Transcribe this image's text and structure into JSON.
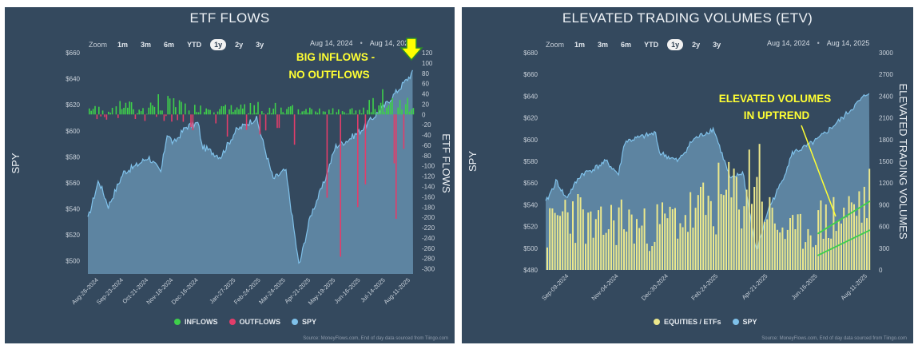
{
  "charts": [
    {
      "title": "ETF FLOWS",
      "zoom_label": "Zoom",
      "zoom_buttons": [
        "1m",
        "3m",
        "6m",
        "YTD",
        "1y",
        "2y",
        "3y"
      ],
      "zoom_active": "1y",
      "range_from": "Aug 14, 2024",
      "range_to": "Aug 14, 2025",
      "annotation_line1": "BIG INFLOWS -",
      "annotation_line2": "NO OUTFLOWS",
      "legend": [
        "INFLOWS",
        "OUTFLOWS",
        "SPY"
      ],
      "credit": "Source: MoneyFlows.com, End of day data sourced from Tiingo.com"
    },
    {
      "title": "ELEVATED TRADING VOLUMES (ETV)",
      "zoom_label": "Zoom",
      "zoom_buttons": [
        "1m",
        "3m",
        "6m",
        "YTD",
        "1y",
        "2y",
        "3y"
      ],
      "zoom_active": "1y",
      "range_from": "Aug 14, 2024",
      "range_to": "Aug 14, 2025",
      "annotation_line1": "ELEVATED VOLUMES",
      "annotation_line2": "IN UPTREND",
      "legend": [
        "EQUITIES / ETFs",
        "SPY"
      ],
      "credit": "Source: MoneyFlows.com, End of day data sourced from Tiingo.com"
    }
  ],
  "colors": {
    "panel": "#34495e",
    "spy_line": "#7fc1ea",
    "inflow": "#3ecf4a",
    "outflow": "#e23d6a",
    "volume": "#ece88c",
    "annotation": "#ffff33",
    "trend": "#3ecf4a"
  },
  "chart_data": [
    {
      "type": "bar",
      "title": "ETF FLOWS",
      "xlabel": "",
      "ylabel": "SPY",
      "y2label": "ETF FLOWS",
      "ylim": [
        490,
        660
      ],
      "y_ticks": [
        "$660",
        "$640",
        "$620",
        "$600",
        "$580",
        "$560",
        "$540",
        "$520",
        "$500"
      ],
      "y2lim": [
        -310,
        120
      ],
      "y2_ticks": [
        "120",
        "100",
        "80",
        "60",
        "40",
        "20",
        "0",
        "-20",
        "-40",
        "-60",
        "-80",
        "-100",
        "-120",
        "-140",
        "-160",
        "-180",
        "-200",
        "-220",
        "-240",
        "-260",
        "-280",
        "-300"
      ],
      "x_ticks": [
        "Aug-26-2024",
        "Sep-23-2024",
        "Oct-21-2024",
        "Nov-18-2024",
        "Dec-16-2024",
        "Jan-27-2025",
        "Feb-24-2025",
        "Mar-24-2025",
        "Apr-21-2025",
        "May-19-2025",
        "Jun-16-2025",
        "Jul-14-2025",
        "Aug-11-2025"
      ],
      "legend_position": "bottom",
      "series": [
        {
          "name": "SPY",
          "kind": "area",
          "x": [
            "Aug-14-2024",
            "Aug-26-2024",
            "Sep-06-2024",
            "Sep-23-2024",
            "Oct-07-2024",
            "Oct-21-2024",
            "Nov-04-2024",
            "Nov-11-2024",
            "Nov-18-2024",
            "Dec-02-2024",
            "Dec-16-2024",
            "Dec-20-2024",
            "Jan-10-2025",
            "Jan-27-2025",
            "Feb-19-2025",
            "Mar-10-2025",
            "Mar-24-2025",
            "Apr-08-2025",
            "Apr-21-2025",
            "May-06-2025",
            "May-19-2025",
            "Jun-02-2025",
            "Jun-16-2025",
            "Jul-14-2025",
            "Aug-14-2025"
          ],
          "values": [
            532,
            562,
            542,
            568,
            573,
            580,
            568,
            598,
            590,
            603,
            606,
            588,
            580,
            600,
            610,
            563,
            570,
            496,
            535,
            560,
            588,
            593,
            600,
            620,
            645
          ]
        },
        {
          "name": "INFLOWS",
          "kind": "bar",
          "x": [
            "Aug-26-2024",
            "Sep-23-2024",
            "Oct-21-2024",
            "Nov-11-2024",
            "Nov-18-2024",
            "Dec-16-2024",
            "Jan-27-2025",
            "Feb-24-2025",
            "May-19-2025",
            "Jun-16-2025",
            "Jul-14-2025",
            "Aug-11-2025",
            "Aug-14-2025"
          ],
          "values": [
            18,
            28,
            22,
            75,
            30,
            20,
            20,
            25,
            12,
            18,
            55,
            42,
            90
          ]
        },
        {
          "name": "OUTFLOWS",
          "kind": "bar",
          "x": [
            "Nov-18-2024",
            "Dec-16-2024",
            "Dec-20-2024",
            "Jan-10-2025",
            "Feb-24-2025",
            "Mar-10-2025",
            "Mar-24-2025",
            "Apr-08-2025",
            "Apr-21-2025"
          ],
          "values": [
            -18,
            -40,
            -110,
            -65,
            -45,
            -100,
            -75,
            -150,
            -285
          ]
        }
      ]
    },
    {
      "type": "bar",
      "title": "ELEVATED TRADING VOLUMES (ETV)",
      "xlabel": "",
      "ylabel": "SPY",
      "y2label": "ELEVATED TRADING VOLUMES",
      "ylim": [
        480,
        680
      ],
      "y_ticks": [
        "$680",
        "$660",
        "$640",
        "$620",
        "$600",
        "$580",
        "$560",
        "$540",
        "$520",
        "$500",
        "$480"
      ],
      "y2lim": [
        0,
        3000
      ],
      "y2_ticks": [
        "3000",
        "2700",
        "2400",
        "2100",
        "1800",
        "1500",
        "1200",
        "900",
        "600",
        "300",
        "0"
      ],
      "x_ticks": [
        "Sep-09-2024",
        "Nov-04-2024",
        "Dec-30-2024",
        "Feb-24-2025",
        "Apr-21-2025",
        "Jun-16-2025",
        "Aug-11-2025"
      ],
      "legend_position": "bottom",
      "series": [
        {
          "name": "SPY",
          "kind": "area",
          "x": [
            "Aug-14-2024",
            "Aug-26-2024",
            "Sep-06-2024",
            "Sep-23-2024",
            "Oct-07-2024",
            "Oct-21-2024",
            "Nov-04-2024",
            "Nov-11-2024",
            "Dec-02-2024",
            "Dec-16-2024",
            "Dec-20-2024",
            "Jan-10-2025",
            "Jan-27-2025",
            "Feb-19-2025",
            "Mar-10-2025",
            "Mar-24-2025",
            "Apr-08-2025",
            "Apr-21-2025",
            "May-06-2025",
            "May-19-2025",
            "Jun-02-2025",
            "Jun-16-2025",
            "Jul-14-2025",
            "Aug-14-2025"
          ],
          "values": [
            542,
            562,
            546,
            568,
            573,
            580,
            568,
            598,
            603,
            606,
            588,
            580,
            600,
            610,
            563,
            570,
            496,
            535,
            560,
            588,
            593,
            600,
            620,
            645
          ]
        },
        {
          "name": "EQUITIES / ETFs",
          "kind": "bar",
          "x": [
            "Aug-14-2024",
            "Sep-09-2024",
            "Oct-07-2024",
            "Nov-04-2024",
            "Dec-02-2024",
            "Dec-30-2024",
            "Jan-27-2025",
            "Feb-24-2025",
            "Mar-24-2025",
            "Apr-08-2025",
            "Apr-21-2025",
            "May-19-2025",
            "Jun-16-2025",
            "Jul-14-2025",
            "Aug-11-2025"
          ],
          "values": [
            650,
            1100,
            650,
            900,
            700,
            850,
            950,
            1200,
            1300,
            1900,
            900,
            600,
            800,
            950,
            1200
          ]
        }
      ],
      "trendlines": [
        {
          "x": [
            "Jun-16-2025",
            "Aug-14-2025"
          ],
          "values": [
            500,
            950
          ]
        },
        {
          "x": [
            "Jun-16-2025",
            "Aug-14-2025"
          ],
          "values": [
            200,
            550
          ]
        }
      ]
    }
  ]
}
